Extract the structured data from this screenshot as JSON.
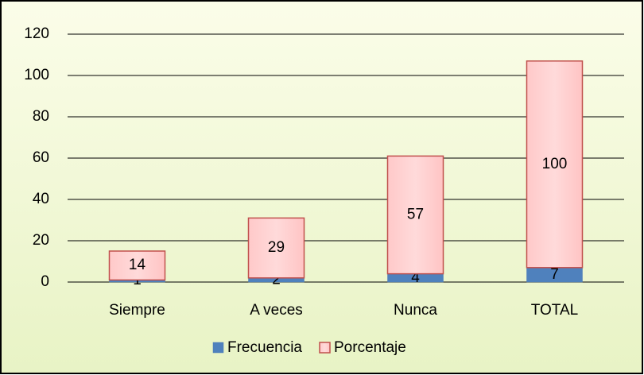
{
  "chart_data": {
    "type": "stacked_bar",
    "categories": [
      "Siempre",
      "A veces",
      "Nunca",
      "TOTAL"
    ],
    "series": [
      {
        "name": "Frecuencia",
        "color": "#4f81bd",
        "values": [
          1,
          2,
          4,
          7
        ]
      },
      {
        "name": "Porcentaje",
        "color": "#ffbcbc",
        "values": [
          14,
          29,
          57,
          100
        ]
      }
    ],
    "ylim": [
      0,
      120
    ],
    "yticks": [
      0,
      20,
      40,
      60,
      80,
      100,
      120
    ],
    "grid": true,
    "legend": "bottom"
  }
}
